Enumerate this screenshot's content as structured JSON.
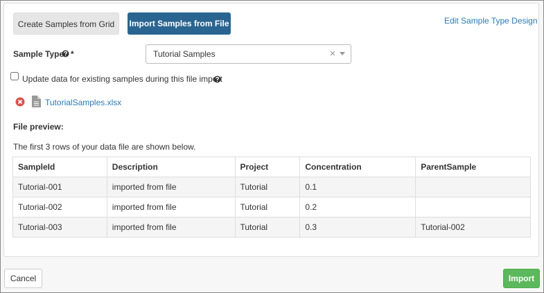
{
  "tabs": [
    "Create Samples from Grid",
    "Import Samples from File"
  ],
  "edit_link": "Edit Sample Type Design",
  "sample_type": {
    "label": "Sample Type",
    "required_mark": "*",
    "value": "Tutorial Samples"
  },
  "update_checkbox": {
    "label": "Update data for existing samples during this file import",
    "checked": false
  },
  "file": {
    "name": "TutorialSamples.xlsx"
  },
  "preview": {
    "heading": "File preview:",
    "note": "The first 3 rows of your data file are shown below."
  },
  "table": {
    "headers": [
      "SampleId",
      "Description",
      "Project",
      "Concentration",
      "ParentSample"
    ],
    "rows": [
      [
        "Tutorial-001",
        "imported from file",
        "Tutorial",
        "0.1",
        null
      ],
      [
        "Tutorial-002",
        "imported from file",
        "Tutorial",
        "0.2",
        null
      ],
      [
        "Tutorial-003",
        "imported from file",
        "Tutorial",
        "0.3",
        "Tutorial-002"
      ]
    ]
  },
  "buttons": {
    "cancel": "Cancel",
    "import": "Import"
  }
}
